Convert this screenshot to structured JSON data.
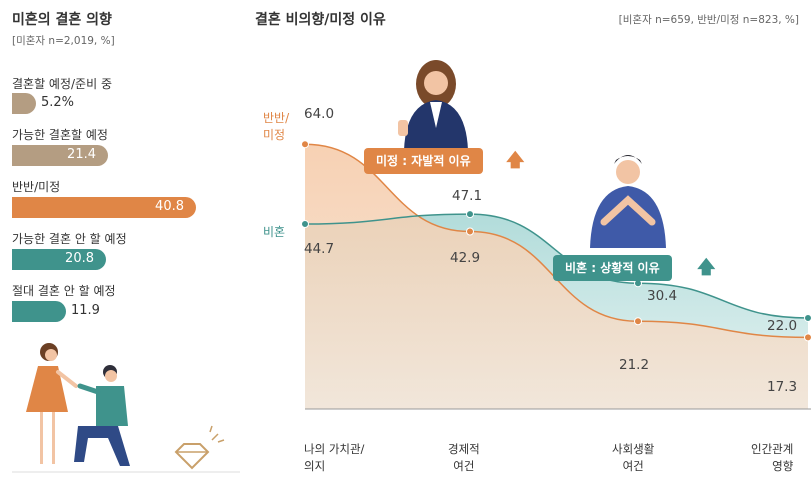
{
  "left_panel": {
    "title": "미혼의 결혼 의향",
    "subtitle": "[미혼자 n=2,019, %]",
    "bars": [
      {
        "label": "결혼할 예정/준비 중",
        "value": 5.2,
        "display": "5.2%",
        "color": "#b49d82"
      },
      {
        "label": "가능한 결혼할 예정",
        "value": 21.4,
        "display": "21.4",
        "color": "#b49d82"
      },
      {
        "label": "반반/미정",
        "value": 40.8,
        "display": "40.8",
        "color": "#e08646"
      },
      {
        "label": "가능한 결혼 안 할 예정",
        "value": 20.8,
        "display": "20.8",
        "color": "#3f938c"
      },
      {
        "label": "절대 결혼 안 할 예정",
        "value": 11.9,
        "display": "11.9",
        "color": "#3f938c"
      }
    ]
  },
  "right_panel": {
    "title": "결혼 비의향/미정 이유",
    "note": "[비혼자 n=659, 반반/미정 n=823, %]",
    "callout_undecided": "미정 : 자발적 이유",
    "callout_nonmarriage": "비혼 : 상황적 이유"
  },
  "chart_data": {
    "type": "area",
    "categories": [
      "나의 가치관/\n의지",
      "경제적\n여건",
      "사회생활\n여건",
      "인간관계\n영향"
    ],
    "series": [
      {
        "name": "반반/\n미정",
        "values": [
          64.0,
          42.9,
          21.2,
          17.3
        ],
        "color": "#e08646",
        "labels": [
          "64.0",
          "42.9",
          "21.2",
          "17.3"
        ]
      },
      {
        "name": "비혼",
        "values": [
          44.7,
          47.1,
          30.4,
          22.0
        ],
        "color": "#3f938c",
        "labels": [
          "44.7",
          "47.1",
          "30.4",
          "22.0"
        ]
      }
    ],
    "ylim": [
      0,
      80
    ],
    "grid": false
  }
}
